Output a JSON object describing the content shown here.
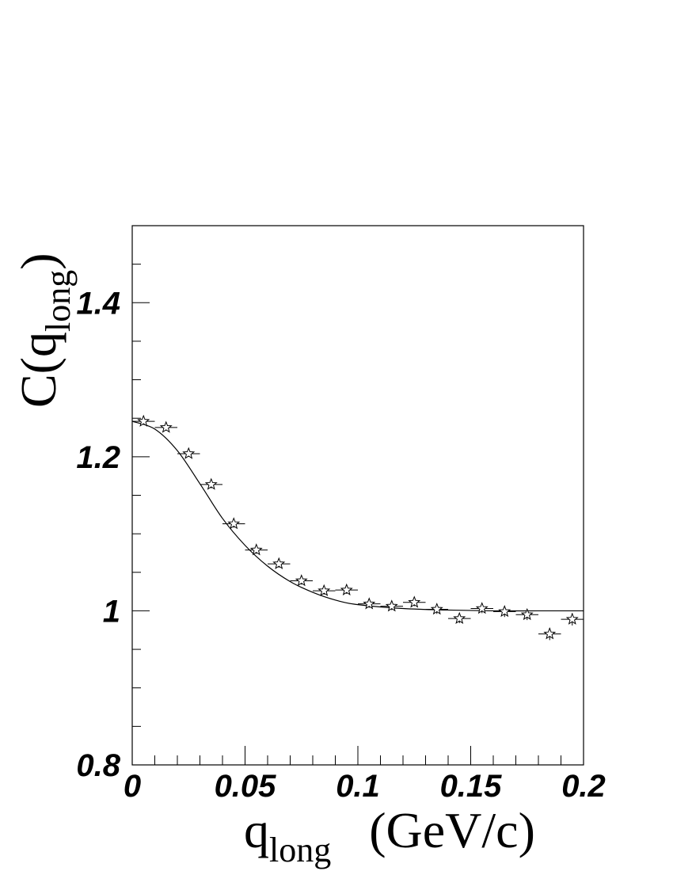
{
  "chart_data": {
    "type": "scatter",
    "xlabel": {
      "main": "q",
      "sub": "long",
      "unit": "(GeV/c)"
    },
    "ylabel": {
      "main": "C(q",
      "sub": "long",
      "close": ")"
    },
    "xlim": [
      0,
      0.2
    ],
    "ylim": [
      0.8,
      1.5
    ],
    "x_ticks": [
      {
        "value": 0,
        "label": "0"
      },
      {
        "value": 0.05,
        "label": "0.05"
      },
      {
        "value": 0.1,
        "label": "0.1"
      },
      {
        "value": 0.15,
        "label": "0.15"
      },
      {
        "value": 0.2,
        "label": "0.2"
      }
    ],
    "y_ticks": [
      {
        "value": 0.8,
        "label": "0.8"
      },
      {
        "value": 1.0,
        "label": "1"
      },
      {
        "value": 1.2,
        "label": "1.2"
      },
      {
        "value": 1.4,
        "label": "1.4"
      }
    ],
    "grid": false,
    "marker": "open-star",
    "series": [
      {
        "points": [
          {
            "x": 0.005,
            "y": 1.246,
            "xerr": 0.005,
            "yerr": 0.004
          },
          {
            "x": 0.015,
            "y": 1.238,
            "xerr": 0.005,
            "yerr": 0.004
          },
          {
            "x": 0.025,
            "y": 1.204,
            "xerr": 0.005,
            "yerr": 0.004
          },
          {
            "x": 0.035,
            "y": 1.164,
            "xerr": 0.005,
            "yerr": 0.005
          },
          {
            "x": 0.045,
            "y": 1.113,
            "xerr": 0.005,
            "yerr": 0.005
          },
          {
            "x": 0.055,
            "y": 1.079,
            "xerr": 0.005,
            "yerr": 0.005
          },
          {
            "x": 0.065,
            "y": 1.061,
            "xerr": 0.005,
            "yerr": 0.005
          },
          {
            "x": 0.075,
            "y": 1.039,
            "xerr": 0.005,
            "yerr": 0.005
          },
          {
            "x": 0.085,
            "y": 1.026,
            "xerr": 0.005,
            "yerr": 0.005
          },
          {
            "x": 0.095,
            "y": 1.027,
            "xerr": 0.005,
            "yerr": 0.005
          },
          {
            "x": 0.105,
            "y": 1.009,
            "xerr": 0.005,
            "yerr": 0.005
          },
          {
            "x": 0.115,
            "y": 1.006,
            "xerr": 0.005,
            "yerr": 0.005
          },
          {
            "x": 0.125,
            "y": 1.011,
            "xerr": 0.005,
            "yerr": 0.005
          },
          {
            "x": 0.135,
            "y": 1.002,
            "xerr": 0.005,
            "yerr": 0.006
          },
          {
            "x": 0.145,
            "y": 0.99,
            "xerr": 0.005,
            "yerr": 0.006
          },
          {
            "x": 0.155,
            "y": 1.003,
            "xerr": 0.005,
            "yerr": 0.006
          },
          {
            "x": 0.165,
            "y": 0.999,
            "xerr": 0.005,
            "yerr": 0.007
          },
          {
            "x": 0.175,
            "y": 0.995,
            "xerr": 0.005,
            "yerr": 0.007
          },
          {
            "x": 0.185,
            "y": 0.97,
            "xerr": 0.005,
            "yerr": 0.008
          },
          {
            "x": 0.195,
            "y": 0.989,
            "xerr": 0.005,
            "yerr": 0.008
          }
        ]
      }
    ],
    "fit_curve": {
      "function": "1 + lambda * exp(-R^2 * q^2)",
      "x_range": [
        0,
        0.2
      ],
      "x": [
        0,
        0.01,
        0.02,
        0.03,
        0.04,
        0.05,
        0.06,
        0.07,
        0.08,
        0.09,
        0.1,
        0.12,
        0.14,
        0.16,
        0.18,
        0.2
      ],
      "y": [
        1.246,
        1.236,
        1.208,
        1.165,
        1.12,
        1.085,
        1.058,
        1.038,
        1.024,
        1.014,
        1.008,
        1.003,
        1.001,
        1.0,
        1.0,
        1.0
      ]
    }
  }
}
